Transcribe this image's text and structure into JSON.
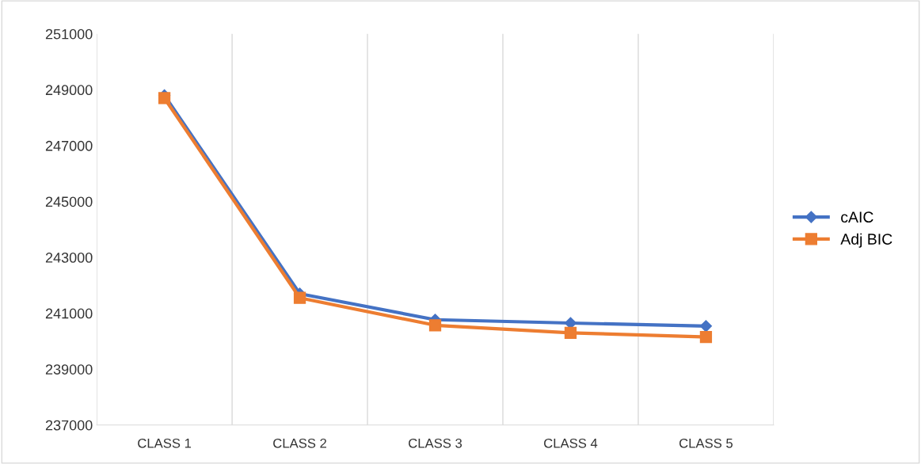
{
  "chart_data": {
    "type": "line",
    "categories": [
      "CLASS 1",
      "CLASS 2",
      "CLASS 3",
      "CLASS 4",
      "CLASS 5"
    ],
    "series": [
      {
        "name": "cAIC",
        "color": "#4472c4",
        "marker": "diamond",
        "values": [
          248800,
          241700,
          240770,
          240650,
          240540
        ]
      },
      {
        "name": "Adj BIC",
        "color": "#ed7d31",
        "marker": "square",
        "values": [
          248700,
          241550,
          240570,
          240300,
          240150
        ]
      }
    ],
    "ylim": [
      237000,
      251000
    ],
    "yticks": [
      237000,
      239000,
      241000,
      243000,
      245000,
      247000,
      249000,
      251000
    ],
    "grid": "x",
    "legend": "right",
    "line_style": "solid"
  }
}
